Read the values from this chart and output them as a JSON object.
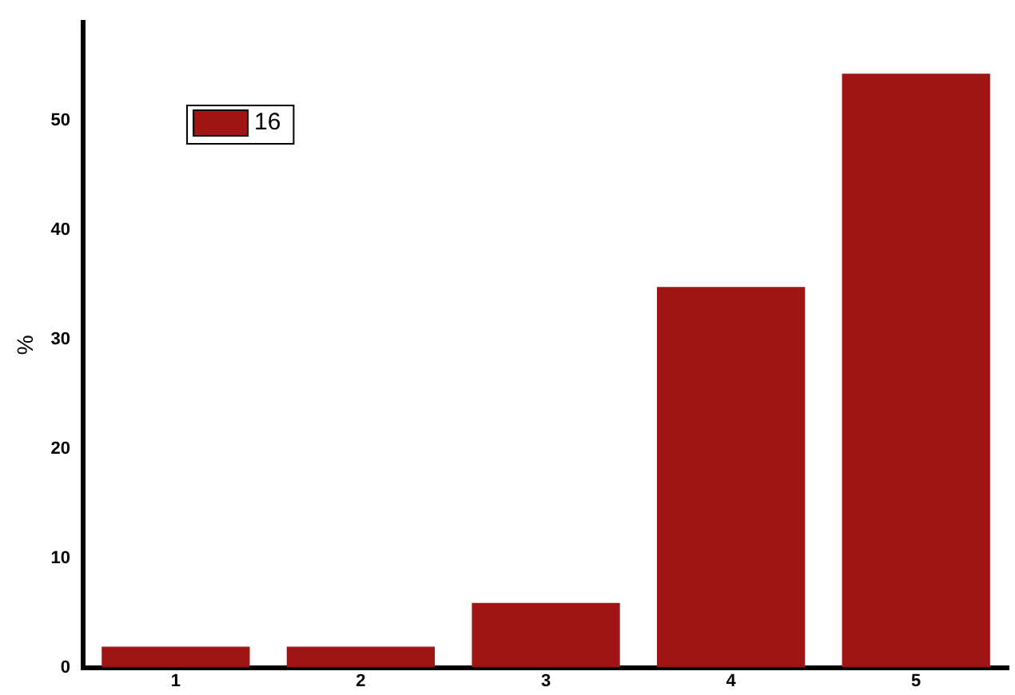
{
  "chart_data": {
    "type": "bar",
    "ylabel": "%",
    "categories": [
      "1",
      "2",
      "3",
      "4",
      "5"
    ],
    "series": [
      {
        "name": "16",
        "color": "#a01414",
        "values": [
          1.9,
          1.9,
          5.9,
          34.8,
          54.3
        ]
      }
    ],
    "ylim": [
      0,
      59
    ],
    "yticks": [
      0,
      10,
      20,
      30,
      40,
      50
    ],
    "grid": false,
    "legend": "top left"
  }
}
